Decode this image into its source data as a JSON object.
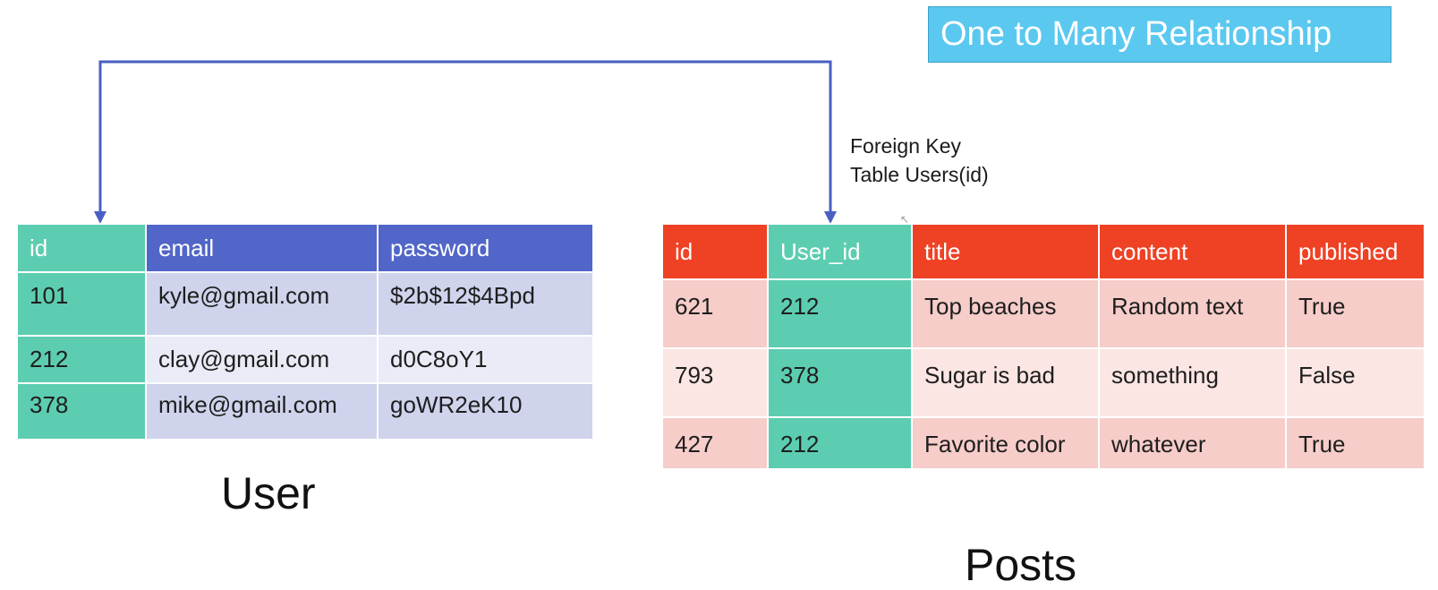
{
  "title": "One to Many Relationship",
  "foreign_key_note": {
    "line1": "Foreign Key",
    "line2": "Table Users(id)"
  },
  "user_table": {
    "caption": "User",
    "columns": [
      "id",
      "email",
      "password"
    ],
    "rows": [
      [
        "101",
        "kyle@gmail.com",
        "$2b$12$4Bpd"
      ],
      [
        "212",
        "clay@gmail.com",
        "d0C8oY1"
      ],
      [
        "378",
        "mike@gmail.com",
        "goWR2eK10"
      ]
    ]
  },
  "posts_table": {
    "caption": "Posts",
    "columns": [
      "id",
      "User_id",
      "title",
      "content",
      "published"
    ],
    "rows": [
      [
        "621",
        "212",
        "Top beaches",
        "Random text",
        "True"
      ],
      [
        "793",
        "378",
        "Sugar is bad",
        "something",
        "False"
      ],
      [
        "427",
        "212",
        "Favorite color",
        "whatever",
        "True"
      ]
    ]
  },
  "colors": {
    "title_bg": "#5bc8f0",
    "key_column": "#5ccdb0",
    "user_header": "#5166c8",
    "posts_header": "#ef4124",
    "connector": "#4a5fc1"
  }
}
